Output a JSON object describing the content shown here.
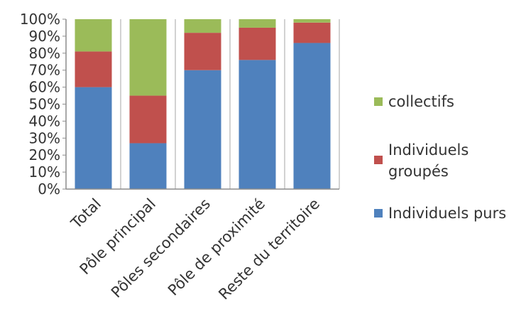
{
  "chart_data": {
    "type": "bar",
    "stacked": true,
    "normalized": true,
    "categories": [
      "Total",
      "Pôle principal",
      "Pôles secondaires",
      "Pôle de proximité",
      "Reste du territoire"
    ],
    "series": [
      {
        "name": "Individuels purs",
        "color": "#4f81bd",
        "values": [
          60,
          27,
          70,
          76,
          86
        ]
      },
      {
        "name": "Individuels groupés",
        "color": "#c0504d",
        "values": [
          21,
          28,
          22,
          19,
          12
        ]
      },
      {
        "name": "collectifs",
        "color": "#9bbb59",
        "values": [
          19,
          45,
          8,
          5,
          2
        ]
      }
    ],
    "legend_labels": [
      [
        "collectifs"
      ],
      [
        "Individuels",
        "groupés"
      ],
      [
        "Individuels purs"
      ]
    ],
    "ylim": [
      0,
      100
    ],
    "yticks": [
      "0%",
      "10%",
      "20%",
      "30%",
      "40%",
      "50%",
      "60%",
      "70%",
      "80%",
      "90%",
      "100%"
    ],
    "grid": "vertical",
    "legend_position": "right"
  }
}
